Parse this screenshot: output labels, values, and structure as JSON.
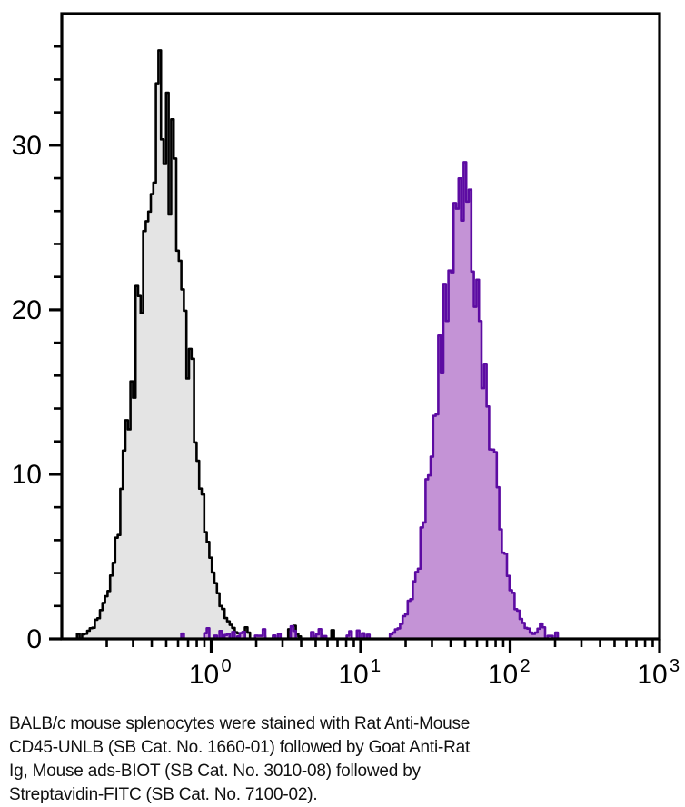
{
  "caption": {
    "lines": [
      "BALB/c mouse splenocytes were stained with Rat Anti-Mouse",
      "CD45-UNLB (SB Cat. No. 1660-01) followed by Goat Anti-Rat",
      "Ig, Mouse ads-BIOT (SB Cat. No. 3010-08) followed by",
      "Streptavidin-FITC (SB Cat. No. 7100-02)."
    ]
  },
  "chart_data": {
    "type": "area",
    "subtype": "flow-cytometry-histogram-overlay",
    "title": "",
    "xlabel": "",
    "ylabel": "",
    "x_scale": "log10",
    "x_range": [
      0.1,
      1000
    ],
    "y_range": [
      0,
      38
    ],
    "grid": false,
    "legend": "none",
    "x_major_ticks": [
      {
        "base": "10",
        "exponent": "0",
        "value": 1
      },
      {
        "base": "10",
        "exponent": "1",
        "value": 10
      },
      {
        "base": "10",
        "exponent": "2",
        "value": 100
      },
      {
        "base": "10",
        "exponent": "3",
        "value": 1000
      }
    ],
    "x_minor_tick_multiples": [
      2,
      3,
      4,
      5,
      6,
      7,
      8,
      9
    ],
    "y_major_ticks": [
      0,
      10,
      20,
      30
    ],
    "y_minor_step": 2,
    "series": [
      {
        "id": "black",
        "line_color": "#000000",
        "fill_color": "#e4e4e4",
        "peak_center_x": 0.47,
        "peak_height_y": 36,
        "peak_sigma_decades": 0.17,
        "baseline_noise_x_range": [
          0.11,
          7.9
        ],
        "noise_density": 0.42,
        "seed": 42
      },
      {
        "id": "purple",
        "line_color": "#5c0ba2",
        "fill_color": "#c493d6",
        "peak_center_x": 48,
        "peak_height_y": 29.6,
        "peak_sigma_decades": 0.16,
        "baseline_noise_x_range": [
          0.63,
          250
        ],
        "noise_density": 0.34,
        "seed": 1337
      }
    ],
    "colors": {
      "background": "#ffffff",
      "axis": "#000000"
    }
  }
}
